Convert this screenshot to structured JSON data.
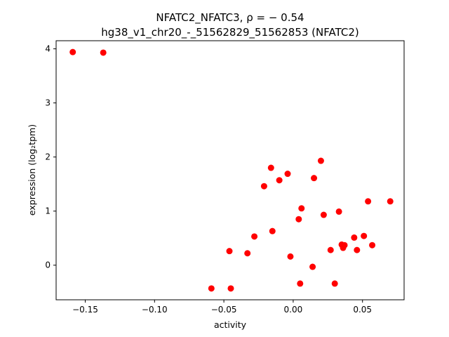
{
  "chart_data": {
    "type": "scatter",
    "title_line1": "NFATC2_NFATC3, ρ = − 0.54",
    "title_line2": "hg38_v1_chr20_-_51562829_51562853 (NFATC2)",
    "xlabel": "activity",
    "ylabel": "expression (log₂tpm)",
    "xlim": [
      -0.171,
      0.08
    ],
    "ylim": [
      -0.64,
      4.15
    ],
    "xticks": [
      -0.15,
      -0.1,
      -0.05,
      0.0,
      0.05
    ],
    "xtick_labels": [
      "−0.15",
      "−0.10",
      "−0.05",
      "0.00",
      "0.05"
    ],
    "yticks": [
      0,
      1,
      2,
      3,
      4
    ],
    "ytick_labels": [
      "0",
      "1",
      "2",
      "3",
      "4"
    ],
    "marker_color": "#ff0000",
    "grid": false,
    "points": [
      {
        "x": -0.159,
        "y": 3.94
      },
      {
        "x": -0.137,
        "y": 3.93
      },
      {
        "x": -0.059,
        "y": -0.43
      },
      {
        "x": -0.045,
        "y": -0.43
      },
      {
        "x": -0.046,
        "y": 0.26
      },
      {
        "x": -0.033,
        "y": 0.22
      },
      {
        "x": -0.028,
        "y": 0.53
      },
      {
        "x": -0.021,
        "y": 1.46
      },
      {
        "x": -0.016,
        "y": 1.8
      },
      {
        "x": -0.015,
        "y": 0.63
      },
      {
        "x": -0.01,
        "y": 1.57
      },
      {
        "x": -0.004,
        "y": 1.69
      },
      {
        "x": -0.002,
        "y": 0.16
      },
      {
        "x": 0.004,
        "y": 0.85
      },
      {
        "x": 0.006,
        "y": 1.05
      },
      {
        "x": 0.005,
        "y": -0.34
      },
      {
        "x": 0.014,
        "y": -0.03
      },
      {
        "x": 0.015,
        "y": 1.61
      },
      {
        "x": 0.02,
        "y": 1.93
      },
      {
        "x": 0.022,
        "y": 0.93
      },
      {
        "x": 0.027,
        "y": 0.28
      },
      {
        "x": 0.03,
        "y": -0.34
      },
      {
        "x": 0.033,
        "y": 0.99
      },
      {
        "x": 0.035,
        "y": 0.38
      },
      {
        "x": 0.036,
        "y": 0.32
      },
      {
        "x": 0.037,
        "y": 0.37
      },
      {
        "x": 0.044,
        "y": 0.51
      },
      {
        "x": 0.046,
        "y": 0.28
      },
      {
        "x": 0.051,
        "y": 0.54
      },
      {
        "x": 0.054,
        "y": 1.18
      },
      {
        "x": 0.057,
        "y": 0.37
      },
      {
        "x": 0.07,
        "y": 1.18
      }
    ]
  }
}
